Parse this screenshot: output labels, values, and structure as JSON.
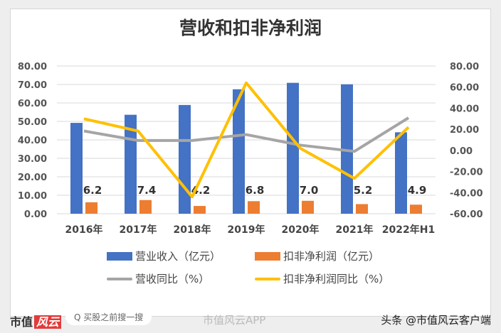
{
  "chart_data": {
    "type": "bar+line",
    "title": "营收和扣非净利润",
    "categories": [
      "2016年",
      "2017年",
      "2018年",
      "2019年",
      "2020年",
      "2021年",
      "2022年H1"
    ],
    "y_left": {
      "ylim": [
        0,
        80
      ],
      "ticks": [
        "0.00",
        "10.00",
        "20.00",
        "30.00",
        "40.00",
        "50.00",
        "60.00",
        "70.00",
        "80.00"
      ]
    },
    "y_right": {
      "ylim": [
        -60,
        80
      ],
      "ticks": [
        "-60.00",
        "-40.00",
        "-20.00",
        "0.00",
        "20.00",
        "40.00",
        "60.00",
        "80.00"
      ]
    },
    "grid": true,
    "legend_position": "bottom",
    "series": [
      {
        "name": "营业收入（亿元）",
        "type": "bar",
        "axis": "left",
        "color": "#4472c4",
        "values": [
          49.2,
          53.6,
          58.9,
          67.4,
          70.9,
          70.1,
          44.1
        ]
      },
      {
        "name": "扣非净利润（亿元）",
        "type": "bar",
        "axis": "left",
        "color": "#ed7d31",
        "values": [
          6.2,
          7.4,
          4.2,
          6.8,
          7.0,
          5.2,
          4.9
        ],
        "labels": [
          "6.2",
          "7.4",
          "4.2",
          "6.8",
          "7.0",
          "5.2",
          "4.9"
        ]
      },
      {
        "name": "营收同比（%）",
        "type": "line",
        "axis": "right",
        "color": "#a5a5a5",
        "values": [
          18.4,
          9.4,
          9.4,
          15.0,
          5.0,
          -0.9,
          30.9
        ]
      },
      {
        "name": "扣非净利润同比（%）",
        "type": "line",
        "axis": "right",
        "color": "#ffc000",
        "values": [
          30.0,
          18.4,
          -44.0,
          64.0,
          2.0,
          -26.5,
          22.0
        ]
      }
    ]
  },
  "footer": {
    "logo_text": "市值",
    "logo_mark": "风云",
    "search_placeholder": "Q 买股之前搜一搜",
    "weibo": "市值风云APP",
    "toutiao": "头条 @市值风云客户端"
  }
}
